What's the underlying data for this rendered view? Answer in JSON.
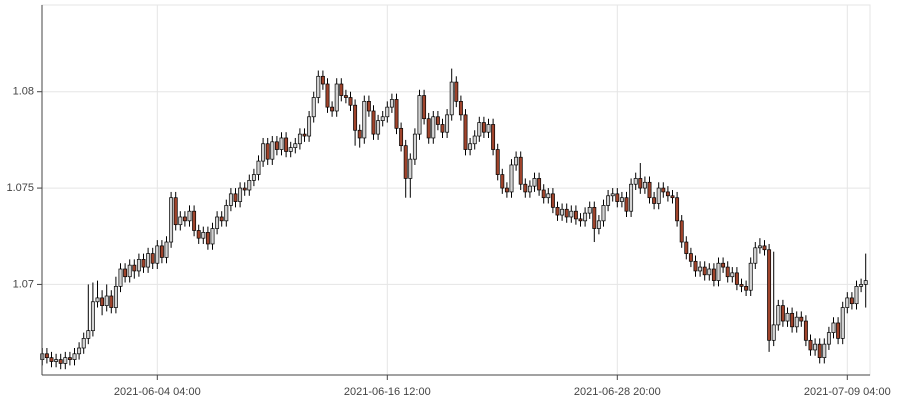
{
  "chart_data": {
    "type": "candlestick",
    "categories": [
      null,
      null,
      null,
      null,
      null,
      null,
      null,
      null,
      null,
      null,
      null,
      null,
      null,
      null,
      null,
      null,
      null,
      null,
      null,
      null,
      null,
      null,
      null,
      null,
      null,
      "2021-06-04 04:00",
      null,
      null,
      null,
      null,
      null,
      null,
      null,
      null,
      null,
      null,
      null,
      null,
      null,
      null,
      null,
      null,
      null,
      null,
      null,
      null,
      null,
      null,
      null,
      null,
      null,
      null,
      null,
      null,
      null,
      null,
      null,
      null,
      null,
      null,
      null,
      null,
      null,
      null,
      null,
      null,
      null,
      null,
      null,
      null,
      null,
      null,
      null,
      null,
      null,
      "2021-06-16 12:00",
      null,
      null,
      null,
      null,
      null,
      null,
      null,
      null,
      null,
      null,
      null,
      null,
      null,
      null,
      null,
      null,
      null,
      null,
      null,
      null,
      null,
      null,
      null,
      null,
      null,
      null,
      null,
      null,
      null,
      null,
      null,
      null,
      null,
      null,
      null,
      null,
      null,
      null,
      null,
      null,
      null,
      null,
      null,
      null,
      null,
      null,
      null,
      null,
      null,
      "2021-06-28 20:00",
      null,
      null,
      null,
      null,
      null,
      null,
      null,
      null,
      null,
      null,
      null,
      null,
      null,
      null,
      null,
      null,
      null,
      null,
      null,
      null,
      null,
      null,
      null,
      null,
      null,
      null,
      null,
      null,
      null,
      null,
      null,
      null,
      null,
      null,
      null,
      null,
      null,
      null,
      null,
      null,
      null,
      null,
      null,
      null,
      null,
      null,
      null,
      null,
      null,
      "2021-07-09 04:00",
      null,
      null,
      null,
      null
    ],
    "open": [
      1.0661,
      1.0664,
      1.0662,
      1.066,
      1.0661,
      1.0659,
      1.0662,
      1.0661,
      1.0664,
      1.0667,
      1.0672,
      1.0676,
      1.0691,
      1.0693,
      1.0689,
      1.0694,
      1.0688,
      1.0699,
      1.0708,
      1.0704,
      1.071,
      1.0707,
      1.0713,
      1.0709,
      1.0716,
      1.0711,
      1.072,
      1.0714,
      1.0722,
      1.0745,
      1.0731,
      1.0735,
      1.0733,
      1.0738,
      1.0728,
      1.0724,
      1.0727,
      1.0721,
      1.0729,
      1.0735,
      1.0733,
      1.0741,
      1.0747,
      1.0743,
      1.075,
      1.0749,
      1.0754,
      1.0757,
      1.0764,
      1.0773,
      1.0765,
      1.0774,
      1.077,
      1.0776,
      1.0769,
      1.0771,
      1.0773,
      1.0778,
      1.0777,
      1.0787,
      1.0797,
      1.0808,
      1.0804,
      1.0792,
      1.079,
      1.0804,
      1.0798,
      1.0797,
      1.0793,
      1.078,
      1.0776,
      1.0795,
      1.079,
      1.0778,
      1.0785,
      1.0787,
      1.0792,
      1.0796,
      1.0781,
      1.0772,
      1.0755,
      1.0765,
      1.0778,
      1.0798,
      1.0786,
      1.0776,
      1.0787,
      1.0783,
      1.0779,
      1.0788,
      1.0805,
      1.0795,
      1.0788,
      1.077,
      1.0773,
      1.0777,
      1.0784,
      1.0779,
      1.0783,
      1.077,
      1.0757,
      1.075,
      1.0748,
      1.0762,
      1.0766,
      1.0752,
      1.0748,
      1.0751,
      1.0755,
      1.0749,
      1.0745,
      1.0747,
      1.074,
      1.0736,
      1.0739,
      1.0735,
      1.0738,
      1.0734,
      1.0733,
      1.0737,
      1.074,
      1.0729,
      1.0733,
      1.0741,
      1.0746,
      1.0747,
      1.0743,
      1.0745,
      1.0738,
      1.0752,
      1.0755,
      1.075,
      1.0753,
      1.0745,
      1.0742,
      1.075,
      1.0748,
      1.0746,
      1.0745,
      1.0733,
      1.0722,
      1.0716,
      1.0712,
      1.0707,
      1.0709,
      1.0705,
      1.0708,
      1.0702,
      1.0711,
      1.0709,
      1.0704,
      1.0706,
      1.07,
      1.0699,
      1.0697,
      1.0711,
      1.0719,
      1.072,
      1.0718,
      1.0671,
      1.0679,
      1.0689,
      1.0681,
      1.0685,
      1.0678,
      1.0683,
      1.0681,
      1.0671,
      1.0666,
      1.0669,
      1.0662,
      1.0669,
      1.0675,
      1.068,
      1.0672,
      1.0688,
      1.0693,
      1.069,
      1.0699,
      1.07
    ],
    "close": [
      1.0664,
      1.0662,
      1.066,
      1.0661,
      1.0659,
      1.0662,
      1.0661,
      1.0664,
      1.0667,
      1.0672,
      1.0676,
      1.0691,
      1.0693,
      1.0689,
      1.0694,
      1.0688,
      1.0699,
      1.0708,
      1.0704,
      1.071,
      1.0707,
      1.0713,
      1.0709,
      1.0716,
      1.0711,
      1.072,
      1.0714,
      1.0722,
      1.0745,
      1.0731,
      1.0735,
      1.0733,
      1.0738,
      1.0728,
      1.0724,
      1.0727,
      1.0721,
      1.0729,
      1.0735,
      1.0733,
      1.0741,
      1.0747,
      1.0743,
      1.075,
      1.0749,
      1.0754,
      1.0757,
      1.0764,
      1.0773,
      1.0765,
      1.0774,
      1.077,
      1.0776,
      1.0769,
      1.0771,
      1.0773,
      1.0778,
      1.0777,
      1.0787,
      1.0797,
      1.0808,
      1.0804,
      1.0792,
      1.079,
      1.0804,
      1.0798,
      1.0797,
      1.0793,
      1.078,
      1.0776,
      1.0795,
      1.079,
      1.0778,
      1.0785,
      1.0787,
      1.0792,
      1.0796,
      1.0781,
      1.0772,
      1.0755,
      1.0765,
      1.0778,
      1.0798,
      1.0786,
      1.0776,
      1.0787,
      1.0783,
      1.0779,
      1.0788,
      1.0805,
      1.0795,
      1.0788,
      1.077,
      1.0773,
      1.0777,
      1.0784,
      1.0779,
      1.0783,
      1.077,
      1.0757,
      1.075,
      1.0748,
      1.0762,
      1.0766,
      1.0752,
      1.0748,
      1.0751,
      1.0755,
      1.0749,
      1.0745,
      1.0747,
      1.074,
      1.0736,
      1.0739,
      1.0735,
      1.0738,
      1.0734,
      1.0733,
      1.0737,
      1.074,
      1.0729,
      1.0733,
      1.0741,
      1.0746,
      1.0747,
      1.0743,
      1.0745,
      1.0738,
      1.0752,
      1.0755,
      1.075,
      1.0753,
      1.0745,
      1.0742,
      1.075,
      1.0748,
      1.0746,
      1.0745,
      1.0733,
      1.0722,
      1.0716,
      1.0712,
      1.0707,
      1.0709,
      1.0705,
      1.0708,
      1.0702,
      1.0711,
      1.0709,
      1.0704,
      1.0706,
      1.07,
      1.0699,
      1.0697,
      1.0711,
      1.0719,
      1.072,
      1.0718,
      1.0671,
      1.0679,
      1.0689,
      1.0681,
      1.0685,
      1.0678,
      1.0683,
      1.0681,
      1.0671,
      1.0666,
      1.0669,
      1.0662,
      1.0669,
      1.0675,
      1.068,
      1.0672,
      1.0688,
      1.0693,
      1.069,
      1.0699,
      1.07,
      1.0702
    ],
    "high": [
      1.0667,
      1.0667,
      1.0665,
      1.0664,
      1.0664,
      1.0665,
      1.0665,
      1.0667,
      1.067,
      1.0675,
      1.07,
      1.0701,
      1.0702,
      1.0697,
      1.07,
      1.0697,
      1.0704,
      1.0711,
      1.0711,
      1.0713,
      1.0713,
      1.0716,
      1.0716,
      1.0719,
      1.0719,
      1.0723,
      1.0723,
      1.0725,
      1.0748,
      1.0748,
      1.0738,
      1.0738,
      1.0741,
      1.0741,
      1.0731,
      1.073,
      1.073,
      1.0732,
      1.0738,
      1.0738,
      1.0744,
      1.075,
      1.075,
      1.0753,
      1.0753,
      1.0757,
      1.076,
      1.0767,
      1.0776,
      1.0776,
      1.0777,
      1.0777,
      1.0779,
      1.0779,
      1.0774,
      1.0776,
      1.0781,
      1.0781,
      1.079,
      1.08,
      1.0811,
      1.0811,
      1.0807,
      1.0795,
      1.0807,
      1.0807,
      1.0801,
      1.08,
      1.0796,
      1.0783,
      1.0798,
      1.0798,
      1.0793,
      1.0788,
      1.079,
      1.0795,
      1.0799,
      1.0799,
      1.0784,
      1.0775,
      1.0768,
      1.0781,
      1.0801,
      1.0801,
      1.0789,
      1.079,
      1.079,
      1.0786,
      1.0791,
      1.0812,
      1.0808,
      1.0798,
      1.0791,
      1.0776,
      1.078,
      1.0787,
      1.0787,
      1.0786,
      1.0786,
      1.0773,
      1.076,
      1.0753,
      1.0765,
      1.0769,
      1.0769,
      1.0755,
      1.0754,
      1.0758,
      1.0758,
      1.0752,
      1.075,
      1.075,
      1.0743,
      1.0742,
      1.0742,
      1.0741,
      1.0741,
      1.0737,
      1.074,
      1.0743,
      1.0743,
      1.0736,
      1.0744,
      1.0749,
      1.075,
      1.075,
      1.0748,
      1.0748,
      1.0755,
      1.0758,
      1.0763,
      1.0756,
      1.0756,
      1.0748,
      1.0753,
      1.0753,
      1.0751,
      1.0749,
      1.0748,
      1.0736,
      1.0725,
      1.0719,
      1.0715,
      1.0712,
      1.0712,
      1.0711,
      1.0711,
      1.0714,
      1.0714,
      1.0712,
      1.0709,
      1.0709,
      1.0703,
      1.0702,
      1.0714,
      1.0722,
      1.0724,
      1.0723,
      1.0721,
      1.0717,
      1.0692,
      1.0692,
      1.0688,
      1.0688,
      1.0686,
      1.0686,
      1.0684,
      1.0674,
      1.0672,
      1.0672,
      1.0672,
      1.0678,
      1.0683,
      1.0683,
      1.0691,
      1.0696,
      1.0696,
      1.0702,
      1.0703,
      1.0716
    ],
    "low": [
      1.0658,
      1.0659,
      1.0657,
      1.0657,
      1.0656,
      1.0656,
      1.0658,
      1.0658,
      1.0661,
      1.0664,
      1.0669,
      1.0673,
      1.0688,
      1.0684,
      1.0686,
      1.0685,
      1.0685,
      1.0696,
      1.0701,
      1.0701,
      1.0703,
      1.0704,
      1.0706,
      1.0706,
      1.0708,
      1.0708,
      1.0711,
      1.0711,
      1.0719,
      1.0728,
      1.0728,
      1.073,
      1.073,
      1.0725,
      1.0721,
      1.0721,
      1.0718,
      1.0718,
      1.0726,
      1.073,
      1.073,
      1.0738,
      1.074,
      1.074,
      1.0746,
      1.0746,
      1.0751,
      1.0754,
      1.0761,
      1.0762,
      1.0762,
      1.0767,
      1.0767,
      1.0766,
      1.0766,
      1.0768,
      1.077,
      1.0774,
      1.0774,
      1.0784,
      1.0794,
      1.0801,
      1.0789,
      1.0787,
      1.0787,
      1.0795,
      1.0794,
      1.079,
      1.0772,
      1.0771,
      1.0773,
      1.0787,
      1.0775,
      1.0775,
      1.0782,
      1.0784,
      1.0789,
      1.0778,
      1.0769,
      1.0745,
      1.0745,
      1.0762,
      1.0775,
      1.0783,
      1.0773,
      1.0773,
      1.078,
      1.0776,
      1.0776,
      1.0785,
      1.0792,
      1.0785,
      1.0767,
      1.0767,
      1.077,
      1.0774,
      1.0776,
      1.0776,
      1.0767,
      1.0754,
      1.0747,
      1.0745,
      1.0745,
      1.0759,
      1.0749,
      1.0745,
      1.0745,
      1.0748,
      1.0746,
      1.0742,
      1.0742,
      1.0737,
      1.0733,
      1.0733,
      1.0732,
      1.0732,
      1.0731,
      1.073,
      1.073,
      1.0734,
      1.0722,
      1.0726,
      1.073,
      1.0738,
      1.0743,
      1.074,
      1.074,
      1.0735,
      1.0735,
      1.0749,
      1.0747,
      1.0747,
      1.0742,
      1.0739,
      1.0739,
      1.0745,
      1.0743,
      1.0742,
      1.073,
      1.0719,
      1.0713,
      1.0709,
      1.0704,
      1.0704,
      1.0702,
      1.0702,
      1.0699,
      1.0699,
      1.0706,
      1.0701,
      1.0701,
      1.0697,
      1.0696,
      1.0694,
      1.0694,
      1.0708,
      1.0716,
      1.0715,
      1.0665,
      1.0668,
      1.0676,
      1.0678,
      1.0678,
      1.0675,
      1.0675,
      1.0678,
      1.0668,
      1.0663,
      1.0663,
      1.0659,
      1.0659,
      1.0666,
      1.0672,
      1.0669,
      1.0669,
      1.0685,
      1.0687,
      1.0687,
      1.0696,
      1.0688
    ],
    "up_color": "#d4d4d4",
    "down_color": "#a0442c",
    "ylim": [
      1.0653,
      1.0845
    ],
    "yticks": [
      1.07,
      1.075,
      1.08
    ],
    "grid": true
  }
}
